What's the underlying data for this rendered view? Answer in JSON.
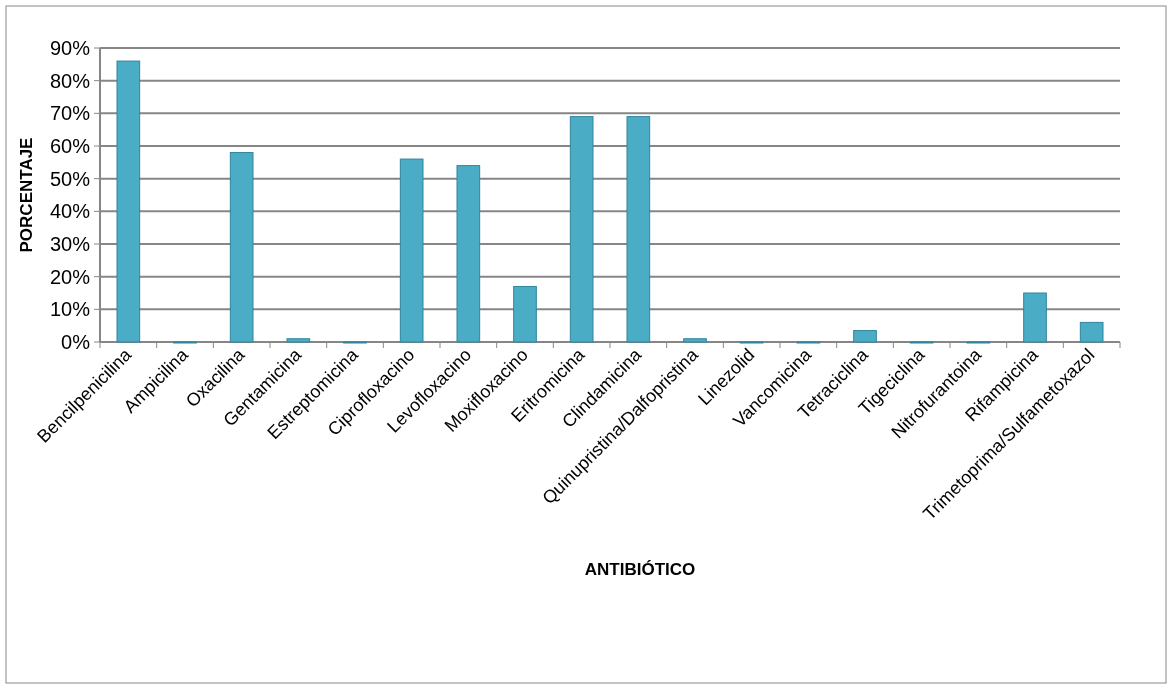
{
  "chart_data": {
    "type": "bar",
    "xlabel": "ANTIBIÓTICO",
    "ylabel": "PORCENTAJE",
    "categories": [
      "Bencilpenicilina",
      "Ampicilina",
      "Oxacilina",
      "Gentamicina",
      "Estreptomicina",
      "Ciprofloxacino",
      "Levofloxacino",
      "Moxifloxacino",
      "Eritromicina",
      "Clindamicina",
      "Quinupristina/Dalfopristina",
      "Linezolid",
      "Vancomicina",
      "Tetraciclina",
      "Tigeciclina",
      "Nitrofurantoina",
      "Rifampicina",
      "Trimetoprima/Sulfametoxazol"
    ],
    "values": [
      0.86,
      0,
      0.58,
      0.01,
      0,
      0.56,
      0.54,
      0.17,
      0.69,
      0.69,
      0.01,
      0,
      0,
      0.035,
      0,
      0,
      0.15,
      0.06
    ],
    "color": "#4bacc6",
    "ylim": [
      0,
      0.9
    ],
    "yticks": [
      {
        "value": 0,
        "label": "0%"
      },
      {
        "value": 0.1,
        "label": "10%"
      },
      {
        "value": 0.2,
        "label": "20%"
      },
      {
        "value": 0.3,
        "label": "30%"
      },
      {
        "value": 0.4,
        "label": "40%"
      },
      {
        "value": 0.5,
        "label": "50%"
      },
      {
        "value": 0.6,
        "label": "60%"
      },
      {
        "value": 0.7,
        "label": "70%"
      },
      {
        "value": 0.8,
        "label": "80%"
      },
      {
        "value": 0.9,
        "label": "90%"
      }
    ],
    "grid": "y"
  }
}
